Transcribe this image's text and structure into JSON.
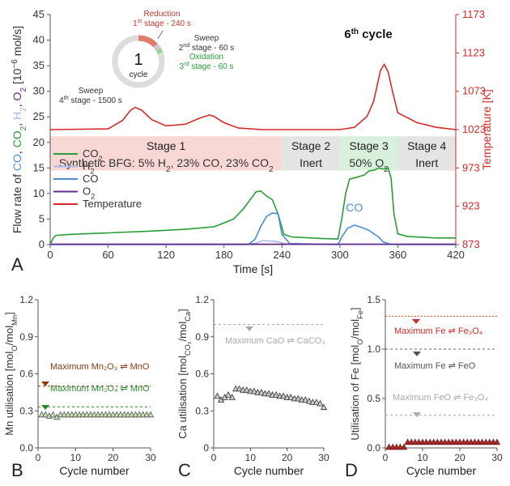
{
  "panels": {
    "A": "A",
    "B": "B",
    "C": "C",
    "D": "D"
  },
  "chart_data": [
    {
      "type": "line",
      "panel": "A",
      "title": "6th cycle",
      "xlabel": "Time [s]",
      "xlim": [
        0,
        420
      ],
      "xticks": [
        0,
        60,
        120,
        180,
        240,
        300,
        360,
        420
      ],
      "ylabel_parts": [
        {
          "text": "Flow rate of ",
          "color": "#333333"
        },
        {
          "text": "CO",
          "color": "#4a8fd4"
        },
        {
          "text": ", ",
          "color": "#333333"
        },
        {
          "text": "CO",
          "color": "#2a9d3a"
        },
        {
          "text": "2",
          "color": "#2a9d3a",
          "sub": true
        },
        {
          "text": ", ",
          "color": "#333333"
        },
        {
          "text": "H",
          "color": "#a9b8e8"
        },
        {
          "text": "2",
          "color": "#a9b8e8",
          "sub": true
        },
        {
          "text": ", ",
          "color": "#333333"
        },
        {
          "text": "O",
          "color": "#6a2c8f"
        },
        {
          "text": "2",
          "color": "#6a2c8f",
          "sub": true
        },
        {
          "text": " [10",
          "color": "#333333"
        },
        {
          "text": "−6",
          "color": "#333333",
          "sup": true
        },
        {
          "text": " mol/s]",
          "color": "#333333"
        }
      ],
      "ylim": [
        0,
        45
      ],
      "yticks": [
        0,
        5,
        10,
        15,
        20,
        25,
        30,
        35,
        40,
        45
      ],
      "y2label": "Temperature [K]",
      "y2lim": [
        873,
        1173
      ],
      "y2ticks": [
        873,
        923,
        973,
        1023,
        1073,
        1123,
        1173
      ],
      "stages": [
        {
          "x0": 0,
          "x1": 240,
          "color": "#f8d8d4",
          "lines": [
            "Stage 1",
            "Synthetic BFG: 5% H",
            "2",
            ", 23% CO, 23% CO",
            "2"
          ]
        },
        {
          "x0": 240,
          "x1": 300,
          "color": "#e4e4e4",
          "lines": [
            "Stage 2",
            "Inert"
          ]
        },
        {
          "x0": 300,
          "x1": 360,
          "color": "#d9f0dd",
          "lines": [
            "Stage 3",
            "50% O",
            "2"
          ]
        },
        {
          "x0": 360,
          "x1": 420,
          "color": "#e4e4e4",
          "lines": [
            "Stage 4",
            "Inert"
          ]
        }
      ],
      "series": [
        {
          "name": "CO2",
          "color": "#2a9d3a",
          "x": [
            0,
            3,
            6,
            20,
            60,
            100,
            140,
            170,
            190,
            200,
            208,
            213,
            218,
            224,
            230,
            236,
            242,
            250,
            280,
            298,
            302,
            306,
            310,
            318,
            325,
            330,
            336,
            340,
            345,
            350,
            353,
            356,
            360,
            370,
            400,
            420
          ],
          "y": [
            0,
            1.3,
            1.8,
            2,
            2.3,
            2.6,
            3,
            3.5,
            5,
            7,
            9,
            10.3,
            10.5,
            9.5,
            8.8,
            6,
            2,
            1.5,
            1.2,
            1.1,
            5,
            10,
            12.8,
            13.2,
            13.6,
            14.4,
            14.6,
            15,
            14.8,
            15,
            13,
            6,
            2.1,
            1.6,
            1.3,
            1.3
          ]
        },
        {
          "name": "H2",
          "color": "#a9b8e8",
          "x": [
            0,
            200,
            212,
            220,
            235,
            242,
            250,
            420
          ],
          "y": [
            0,
            0,
            0.2,
            0.8,
            0.6,
            0.2,
            0,
            0
          ]
        },
        {
          "name": "CO",
          "color": "#4a8fd4",
          "x": [
            0,
            205,
            212,
            218,
            224,
            230,
            236,
            240,
            248,
            298,
            302,
            308,
            315,
            322,
            330,
            340,
            345,
            352,
            360,
            420
          ],
          "y": [
            0,
            0,
            1,
            3.5,
            5.5,
            6.2,
            6,
            2,
            0.2,
            0,
            1.5,
            3.2,
            3.8,
            3.4,
            2.8,
            1.5,
            0.5,
            0.1,
            0,
            0
          ]
        },
        {
          "name": "O2",
          "color": "#6a2c8f",
          "x": [
            0,
            420
          ],
          "y": [
            0.1,
            0.1
          ]
        },
        {
          "name": "Temperature",
          "color": "#d42a2a",
          "axis": "right",
          "x": [
            0,
            60,
            75,
            83,
            88,
            95,
            105,
            120,
            140,
            155,
            165,
            170,
            180,
            195,
            220,
            240,
            270,
            300,
            315,
            328,
            335,
            342,
            346,
            350,
            355,
            360,
            380,
            400,
            420
          ],
          "y": [
            1023,
            1024,
            1035,
            1048,
            1052,
            1048,
            1036,
            1028,
            1030,
            1038,
            1042,
            1040,
            1032,
            1025,
            1023,
            1023,
            1023,
            1023,
            1026,
            1040,
            1060,
            1100,
            1108,
            1098,
            1070,
            1045,
            1032,
            1026,
            1023
          ]
        }
      ],
      "legend": {
        "position": "left",
        "entries": [
          {
            "name": "CO",
            "sub": "2",
            "color": "#2a9d3a"
          },
          {
            "name": "H",
            "sub": "2",
            "color": "#a9b8e8"
          },
          {
            "name": "CO",
            "sub": "",
            "color": "#4a8fd4"
          },
          {
            "name": "O",
            "sub": "2",
            "color": "#6a2c8f"
          },
          {
            "name": "Temperature",
            "sub": "",
            "color": "#d42a2a"
          }
        ]
      },
      "annotations": [
        {
          "text": "CO",
          "color": "#4a8fd4",
          "x": 315,
          "y": 6.5
        }
      ],
      "cycle_diagram": {
        "center_number": "1",
        "center_label": "cycle",
        "segments": [
          {
            "fraction": 0.1288,
            "color": "#e07a6a"
          },
          {
            "fraction": 0.0322,
            "color": "#cccccc"
          },
          {
            "fraction": 0.0322,
            "color": "#9ed4a3"
          },
          {
            "fraction": 0.8068,
            "color": "#dddddd"
          }
        ],
        "labels": [
          {
            "color": "#c0392b",
            "line1": "Reduction",
            "line2_parts": [
              {
                "t": "1"
              },
              {
                "t": "st",
                "sup": true
              },
              {
                "t": " stage - 240 s"
              }
            ]
          },
          {
            "color": "#333333",
            "line1": "Sweep",
            "line2_parts": [
              {
                "t": "2"
              },
              {
                "t": "nd",
                "sup": true
              },
              {
                "t": " stage - 60 s"
              }
            ]
          },
          {
            "color": "#2a9d3a",
            "line1": "Oxidation",
            "line2_parts": [
              {
                "t": "3"
              },
              {
                "t": "rd",
                "sup": true
              },
              {
                "t": " stage - 60 s"
              }
            ]
          },
          {
            "color": "#333333",
            "line1": "Sweep",
            "line2_parts": [
              {
                "t": "4"
              },
              {
                "t": "th",
                "sup": true
              },
              {
                "t": " stage - 1500 s"
              }
            ]
          }
        ]
      }
    },
    {
      "type": "scatter",
      "panel": "B",
      "xlabel": "Cycle number",
      "ylabel_parts": [
        {
          "text": "Mn utilisation [mol",
          "color": "#333333"
        },
        {
          "text": "O",
          "color": "#333333",
          "sub": true
        },
        {
          "text": "/mol",
          "color": "#333333"
        },
        {
          "text": "Mn",
          "color": "#333333",
          "sub": true
        },
        {
          "text": "]",
          "color": "#333333"
        }
      ],
      "xlim": [
        0,
        30
      ],
      "xticks": [
        0,
        10,
        20,
        30
      ],
      "ylim": [
        0,
        1.2
      ],
      "yticks": [
        "0.0",
        "0.3",
        "0.6",
        "0.9",
        "1.2"
      ],
      "series": [
        {
          "marker": "triangle-up",
          "fill": "#c9e0b0",
          "stroke": "#555555",
          "x": [
            1,
            2,
            3,
            4,
            5,
            6,
            7,
            8,
            9,
            10,
            11,
            12,
            13,
            14,
            15,
            16,
            17,
            18,
            19,
            20,
            21,
            22,
            23,
            24,
            25,
            26,
            27,
            28,
            29,
            30
          ],
          "y": [
            0.27,
            0.27,
            0.26,
            0.27,
            0.25,
            0.27,
            0.27,
            0.27,
            0.27,
            0.27,
            0.27,
            0.27,
            0.27,
            0.27,
            0.27,
            0.27,
            0.27,
            0.27,
            0.27,
            0.27,
            0.27,
            0.27,
            0.27,
            0.27,
            0.27,
            0.27,
            0.27,
            0.27,
            0.27,
            0.27
          ]
        }
      ],
      "reference_lines": [
        {
          "y": 0.5,
          "color": "#8b3a0f",
          "dash": "3,3",
          "label": "Maximum Mn₂O₃ ⇌ MnO",
          "label_color": "#8b3a0f",
          "marker_color": "#8b3a0f"
        },
        {
          "y": 0.333,
          "color": "#2a8a2a",
          "dash": "3,3",
          "label": "Maximum Mn₃O₄ ⇌ MnO",
          "label_color": "#2a8a2a",
          "marker_color": "#2a8a2a"
        }
      ]
    },
    {
      "type": "scatter",
      "panel": "C",
      "xlabel": "Cycle number",
      "ylabel_parts": [
        {
          "text": "Ca utilisation [mol",
          "color": "#333333"
        },
        {
          "text": "CO₂",
          "color": "#333333",
          "sub": true
        },
        {
          "text": "/mol",
          "color": "#333333"
        },
        {
          "text": "Ca",
          "color": "#333333",
          "sub": true
        },
        {
          "text": "]",
          "color": "#333333"
        }
      ],
      "xlim": [
        0,
        30
      ],
      "xticks": [
        0,
        10,
        20,
        30
      ],
      "ylim": [
        0,
        1.2
      ],
      "yticks": [
        "0",
        "0.3",
        "0.6",
        "0.9",
        "1.2"
      ],
      "series": [
        {
          "marker": "triangle-up",
          "fill": "#cccccc",
          "stroke": "#333333",
          "x": [
            1,
            2,
            3,
            4,
            5,
            6,
            7,
            8,
            9,
            10,
            11,
            12,
            13,
            14,
            15,
            16,
            17,
            18,
            19,
            20,
            21,
            22,
            23,
            24,
            25,
            26,
            27,
            28,
            29,
            30
          ],
          "y": [
            0.42,
            0.39,
            0.41,
            0.43,
            0.41,
            0.48,
            0.48,
            0.47,
            0.47,
            0.46,
            0.46,
            0.45,
            0.45,
            0.44,
            0.44,
            0.43,
            0.43,
            0.42,
            0.42,
            0.41,
            0.41,
            0.4,
            0.4,
            0.39,
            0.39,
            0.38,
            0.37,
            0.37,
            0.36,
            0.33
          ]
        }
      ],
      "reference_lines": [
        {
          "y": 1.0,
          "color": "#aaaaaa",
          "dash": "3,3",
          "label": "Maximum CaO ⇌ CaCO₃",
          "label_color": "#aaaaaa",
          "marker_color": "#aaaaaa"
        }
      ]
    },
    {
      "type": "scatter",
      "panel": "D",
      "xlabel": "Cycle number",
      "ylabel_parts": [
        {
          "text": "Utilisation of Fe [mol",
          "color": "#333333"
        },
        {
          "text": "O",
          "color": "#333333",
          "sub": true
        },
        {
          "text": "/mol",
          "color": "#333333"
        },
        {
          "text": "Fe",
          "color": "#333333",
          "sub": true
        },
        {
          "text": "]",
          "color": "#333333"
        }
      ],
      "xlim": [
        0,
        30
      ],
      "xticks": [
        0,
        10,
        20,
        30
      ],
      "ylim": [
        0,
        1.5
      ],
      "yticks": [
        "0.0",
        "0.5",
        "1.0",
        "1.5"
      ],
      "series": [
        {
          "marker": "triangle-up",
          "fill": "#a52a2a",
          "stroke": "#7a1a1a",
          "x": [
            1,
            2,
            3,
            4,
            5,
            6,
            7,
            8,
            9,
            10,
            11,
            12,
            13,
            14,
            15,
            16,
            17,
            18,
            19,
            20,
            21,
            22,
            23,
            24,
            25,
            26,
            27,
            28,
            29,
            30
          ],
          "y": [
            0.01,
            0.01,
            0.01,
            0.01,
            0.01,
            0.06,
            0.06,
            0.06,
            0.06,
            0.06,
            0.06,
            0.06,
            0.06,
            0.06,
            0.06,
            0.06,
            0.06,
            0.06,
            0.06,
            0.06,
            0.06,
            0.06,
            0.06,
            0.06,
            0.06,
            0.06,
            0.06,
            0.06,
            0.06,
            0.06
          ]
        }
      ],
      "reference_lines": [
        {
          "y": 1.333,
          "color": "#e03a1a",
          "dash": "2,2",
          "label": "Maximum Fe ⇌ Fe₃O₄",
          "label_color": "#d42a2a",
          "marker_color": "#d42a2a"
        },
        {
          "y": 1.0,
          "color": "#666666",
          "dash": "3,3",
          "label": "Maximum Fe ⇌ FeO",
          "label_color": "#555555",
          "marker_color": "#555555"
        },
        {
          "y": 0.333,
          "color": "#aaaaaa",
          "dash": "3,3",
          "label": "Maximum FeO ⇌ Fe₃O₄",
          "label_color": "#aaaaaa",
          "marker_color": "#aaaaaa"
        }
      ]
    }
  ]
}
